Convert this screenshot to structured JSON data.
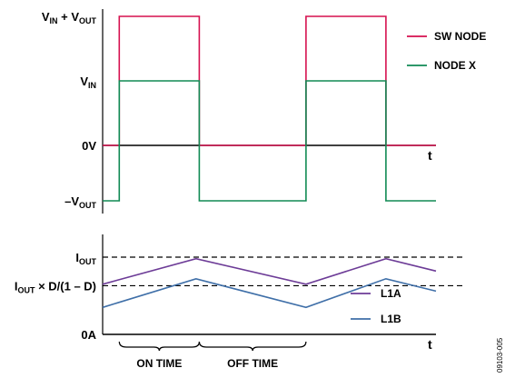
{
  "chart_data": [
    {
      "type": "line",
      "title": "",
      "x_axis_label": "t",
      "y_levels": [
        {
          "name": "vin_plus_vout",
          "main": "V",
          "sub1": "IN",
          "mid": " + V",
          "sub2": "OUT",
          "value": 2
        },
        {
          "name": "vin",
          "main": "V",
          "sub1": "IN",
          "mid": "",
          "sub2": "",
          "value": 1
        },
        {
          "name": "zero",
          "main": "0V",
          "sub1": "",
          "mid": "",
          "sub2": "",
          "value": 0
        },
        {
          "name": "minus_vout",
          "main": "–V",
          "sub1": "OUT",
          "mid": "",
          "sub2": "",
          "value": -1
        }
      ],
      "ylim": [
        -1,
        2
      ],
      "xlim": [
        0,
        4
      ],
      "series": [
        {
          "name": "SW NODE",
          "color": "#d6114f",
          "points": [
            [
              0,
              0
            ],
            [
              0.15,
              0
            ],
            [
              0.15,
              2
            ],
            [
              0.87,
              2
            ],
            [
              0.87,
              0
            ],
            [
              1.83,
              0
            ],
            [
              1.83,
              2
            ],
            [
              2.55,
              2
            ],
            [
              2.55,
              0
            ],
            [
              3,
              0
            ]
          ]
        },
        {
          "name": "NODE X",
          "color": "#108a54",
          "points": [
            [
              0,
              -1
            ],
            [
              0.15,
              -1
            ],
            [
              0.15,
              1
            ],
            [
              0.87,
              1
            ],
            [
              0.87,
              -1
            ],
            [
              1.83,
              -1
            ],
            [
              1.83,
              1
            ],
            [
              2.55,
              1
            ],
            [
              2.55,
              -1
            ],
            [
              3,
              -1
            ]
          ]
        }
      ]
    },
    {
      "type": "line",
      "title": "",
      "x_axis_label": "t",
      "y_levels": [
        {
          "name": "iout",
          "main": "I",
          "sub1": "OUT",
          "mid": "",
          "sub2": "",
          "value": 1.0
        },
        {
          "name": "iout_d",
          "main": "I",
          "sub1": "OUT",
          "mid": " × D/(1 – D)",
          "sub2": "",
          "value": 0.63
        },
        {
          "name": "zero",
          "main": "0A",
          "sub1": "",
          "mid": "",
          "sub2": "",
          "value": 0
        }
      ],
      "dashed_levels": [
        1.0,
        0.63
      ],
      "ylim": [
        0,
        1.23
      ],
      "xlim": [
        0,
        4
      ],
      "series": [
        {
          "name": "L1A",
          "color": "#6d3c97",
          "points": [
            [
              0,
              0.65
            ],
            [
              0.84,
              0.98
            ],
            [
              1.83,
              0.65
            ],
            [
              2.55,
              0.98
            ],
            [
              3,
              0.82
            ]
          ]
        },
        {
          "name": "L1B",
          "color": "#3f6fa8",
          "points": [
            [
              0,
              0.35
            ],
            [
              0.84,
              0.72
            ],
            [
              1.83,
              0.35
            ],
            [
              2.55,
              0.72
            ],
            [
              3,
              0.56
            ]
          ]
        }
      ],
      "annotations": [
        {
          "name": "on-time",
          "text": "ON TIME",
          "x_start": 0.15,
          "x_end": 0.87
        },
        {
          "name": "off-time",
          "text": "OFF TIME",
          "x_start": 0.87,
          "x_end": 1.83
        }
      ]
    }
  ],
  "figure_number": "09103-005"
}
